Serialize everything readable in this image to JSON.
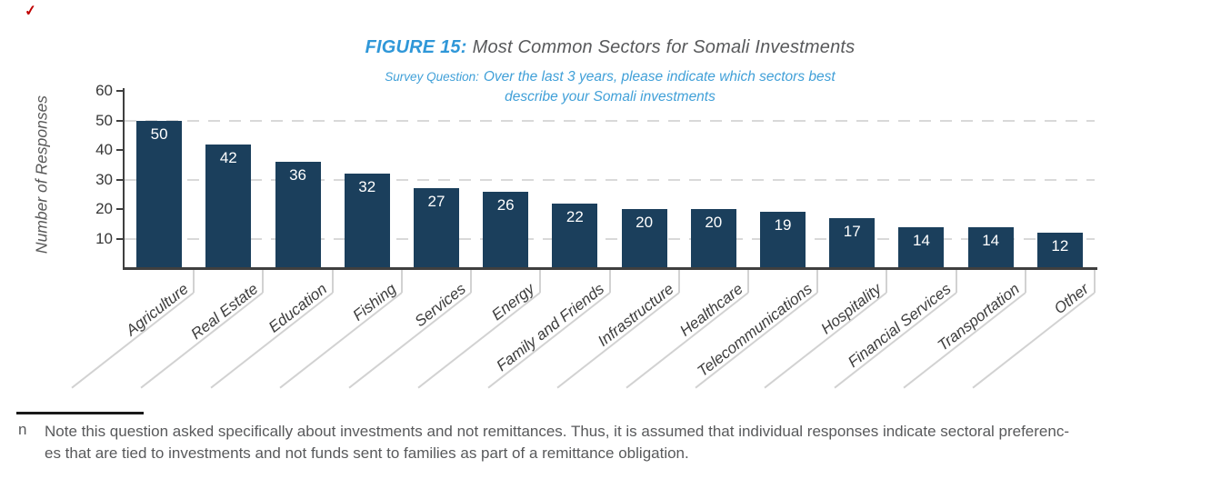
{
  "annotation": {
    "check_mark": "✓"
  },
  "header": {
    "figure_label": "FIGURE 15:",
    "title": "Most Common Sectors for Somali Investments",
    "survey_prefix": "Survey Question:",
    "survey_line1": "Over the last 3 years, please indicate which sectors best",
    "survey_line2": "describe your Somali investments"
  },
  "chart_data": {
    "type": "bar",
    "title": "FIGURE 15: Most Common Sectors for Somali Investments",
    "subtitle": "Survey Question: Over the last 3 years, please indicate which sectors best describe your Somali investments",
    "categories": [
      "Agriculture",
      "Real Estate",
      "Education",
      "Fishing",
      "Services",
      "Energy",
      "Family and Friends",
      "Infrastructure",
      "Healthcare",
      "Telecommunications",
      "Hospitality",
      "Financial Services",
      "Transportation",
      "Other"
    ],
    "values": [
      50,
      42,
      36,
      32,
      27,
      26,
      22,
      20,
      20,
      19,
      17,
      14,
      14,
      12
    ],
    "value_labels_shown": true,
    "xlabel": "",
    "ylabel": "Number of Responses",
    "ylim": [
      0,
      60
    ],
    "yticks": [
      10,
      20,
      30,
      40,
      50,
      60
    ],
    "gridlines_at": [
      10,
      30,
      50
    ],
    "grid_style": "dashed",
    "legend_position": "none",
    "bar_color": "#1b3f5c",
    "value_label_color": "#ffffff"
  },
  "footnote": {
    "marker": "n",
    "lines": [
      "Note this question asked specifically about investments and not remittances. Thus, it is assumed that individual responses indicate sectoral preferenc-",
      "es that are tied to investments and not funds sent to families as part of a remittance obligation."
    ]
  },
  "colors": {
    "figure_label_blue": "#2f97d8",
    "subtitle_blue": "#41a0d8",
    "title_gray": "#58595b",
    "axis_dark": "#3f3f3f",
    "grid_gray": "#d9d9d9",
    "leader_gray": "#d2d2d2",
    "category_label_gray": "#3d3d3d",
    "footnote_gray": "#58595b",
    "annotation_red": "#c00000"
  }
}
